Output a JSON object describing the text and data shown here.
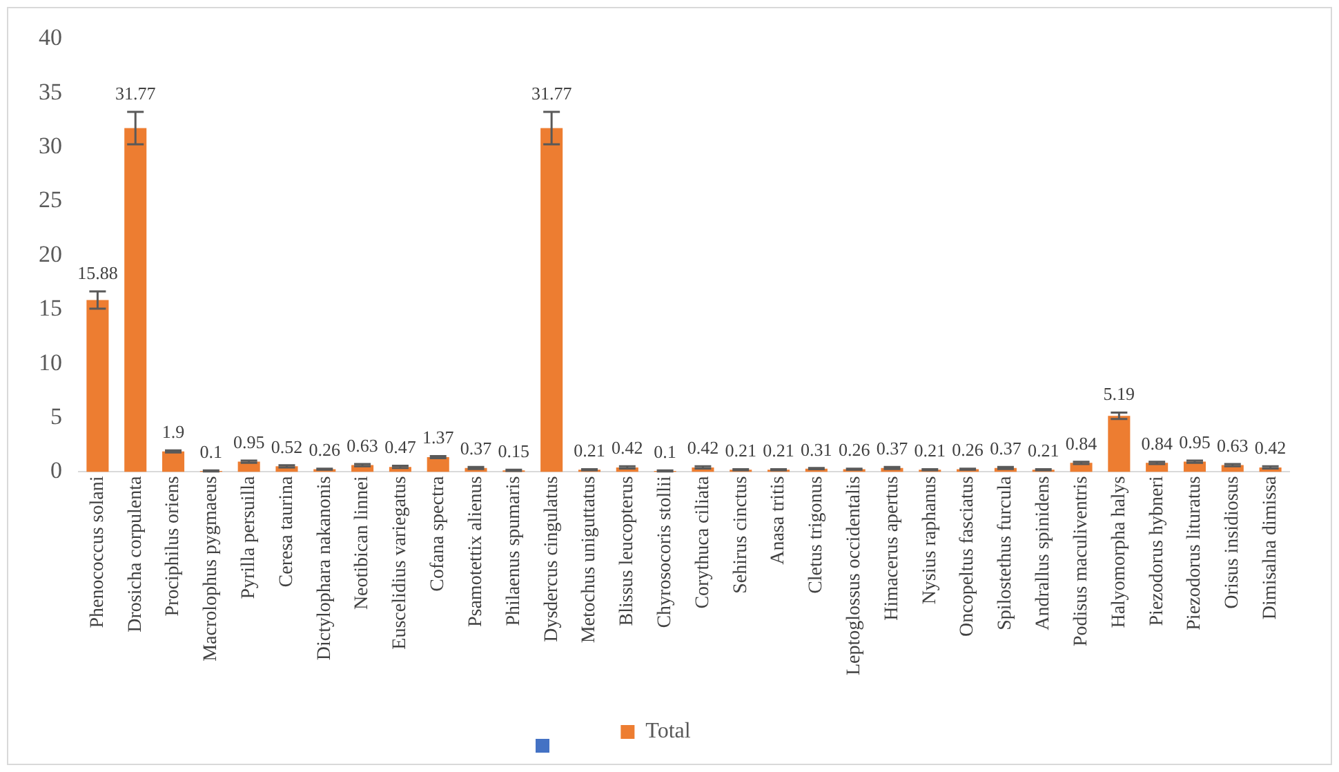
{
  "chart_data": {
    "type": "bar",
    "categories": [
      "Phenococcus solani",
      "Drosicha corpulenta",
      "Prociphilus oriens",
      "Macrolophus pygmaeus",
      "Pyrilla persuilla",
      "Ceresa taurina",
      "Dictylophara nakanonis",
      "Neotibican linnei",
      "Euscelidius variegatus",
      "Cofana spectra",
      "Psamotettix alienus",
      "Philaenus spumaris",
      "Dysdercus cingulatus",
      "Metochus uniguttatus",
      "Blissus leucopterus",
      "Chyrosocoris stollii",
      "Corythuca ciliata",
      "Sehirus cinctus",
      "Anasa tritis",
      "Cletus trigonus",
      "Leptoglossus occidentalis",
      "Himacerus apertus",
      "Nysius raphanus",
      "Oncopeltus fasciatus",
      "Spilostethus furcula",
      "Andrallus spinidens",
      "Podisus maculiventris",
      "Halyomorpha halys",
      "Piezodorus hybneri",
      "Piezodorus lituratus",
      "Orisus insidiosus",
      "Dimisalna dimissa"
    ],
    "series": [
      {
        "name": "Total",
        "color": "#ed7d31",
        "values": [
          15.88,
          31.77,
          1.9,
          0.1,
          0.95,
          0.52,
          0.26,
          0.63,
          0.47,
          1.37,
          0.37,
          0.15,
          31.77,
          0.21,
          0.42,
          0.1,
          0.42,
          0.21,
          0.21,
          0.31,
          0.26,
          0.37,
          0.21,
          0.26,
          0.37,
          0.21,
          0.84,
          5.19,
          0.84,
          0.95,
          0.63,
          0.42
        ],
        "errors": [
          0.8,
          1.5,
          0.1,
          0.05,
          0.1,
          0.1,
          0.05,
          0.1,
          0.1,
          0.1,
          0.1,
          0.05,
          1.5,
          0.05,
          0.1,
          0.05,
          0.1,
          0.05,
          0.05,
          0.05,
          0.05,
          0.1,
          0.05,
          0.05,
          0.1,
          0.05,
          0.1,
          0.3,
          0.1,
          0.1,
          0.1,
          0.1
        ]
      }
    ],
    "ylim": [
      0,
      40
    ],
    "yticks": [
      0,
      5,
      10,
      15,
      20,
      25,
      30,
      35,
      40
    ],
    "data_labels": true,
    "grid": false,
    "legend": "bottom"
  }
}
